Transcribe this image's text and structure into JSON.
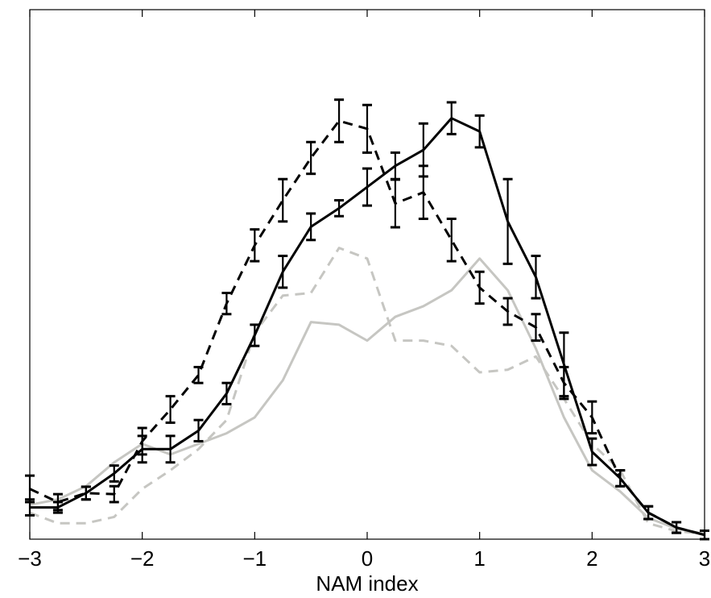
{
  "chart_data": {
    "type": "line",
    "title": "",
    "xlabel": "NAM index",
    "ylabel": "",
    "xlim": [
      -3,
      3
    ],
    "ylim": [
      0,
      1
    ],
    "x_ticks": [
      -3,
      -2,
      -1,
      0,
      1,
      2,
      3
    ],
    "x_tick_labels": [
      "−3",
      "−2",
      "−1",
      "0",
      "1",
      "2",
      "3"
    ],
    "grid": false,
    "legend": false,
    "x": [
      -3,
      -2.75,
      -2.5,
      -2.25,
      -2,
      -1.75,
      -1.5,
      -1.25,
      -1,
      -0.75,
      -0.5,
      -0.25,
      0,
      0.25,
      0.5,
      0.75,
      1,
      1.25,
      1.5,
      1.75,
      2,
      2.25,
      2.5,
      2.75,
      3
    ],
    "series": [
      {
        "style": "solid",
        "color": "#000000",
        "values": [
          0.06,
          0.06,
          0.087,
          0.124,
          0.17,
          0.17,
          0.205,
          0.275,
          0.385,
          0.505,
          0.59,
          0.625,
          0.665,
          0.705,
          0.735,
          0.795,
          0.77,
          0.6,
          0.495,
          0.33,
          0.165,
          0.115,
          0.05,
          0.022,
          0.008
        ],
        "error": [
          0.015,
          0.01,
          0.012,
          0.015,
          0.025,
          0.025,
          0.02,
          0.02,
          0.02,
          0.03,
          0.025,
          0.015,
          0.035,
          0.025,
          0.05,
          0.03,
          0.03,
          0.08,
          0.04,
          0.06,
          0.025,
          0.015,
          0.012,
          0.01,
          0.008
        ]
      },
      {
        "style": "dashed",
        "color": "#000000",
        "values": [
          0.095,
          0.07,
          0.087,
          0.085,
          0.185,
          0.245,
          0.31,
          0.445,
          0.555,
          0.64,
          0.72,
          0.79,
          0.775,
          0.634,
          0.655,
          0.565,
          0.475,
          0.43,
          0.4,
          0.295,
          0.23,
          0.115,
          0.05,
          0.022,
          0.008
        ],
        "error": [
          0.025,
          0.015,
          0.012,
          0.015,
          0.025,
          0.025,
          0.015,
          0.02,
          0.03,
          0.04,
          0.03,
          0.04,
          0.045,
          0.045,
          0.05,
          0.04,
          0.03,
          0.025,
          0.025,
          0.03,
          0.03,
          0.015,
          0.012,
          0.01,
          0.008
        ]
      },
      {
        "style": "solid",
        "color": "#c6c6c2",
        "values": [
          0.065,
          0.075,
          0.1,
          0.145,
          0.18,
          0.16,
          0.18,
          0.2,
          0.23,
          0.3,
          0.41,
          0.405,
          0.375,
          0.42,
          0.44,
          0.47,
          0.53,
          0.47,
          0.36,
          0.23,
          0.13,
          0.09,
          0.04,
          0.02,
          0.01
        ],
        "error": []
      },
      {
        "style": "dashed",
        "color": "#c6c6c2",
        "values": [
          0.05,
          0.03,
          0.03,
          0.042,
          0.095,
          0.13,
          0.17,
          0.225,
          0.39,
          0.46,
          0.465,
          0.55,
          0.53,
          0.375,
          0.375,
          0.365,
          0.315,
          0.32,
          0.345,
          0.265,
          0.18,
          0.13,
          0.03,
          0.015,
          0.01
        ],
        "error": []
      }
    ]
  }
}
